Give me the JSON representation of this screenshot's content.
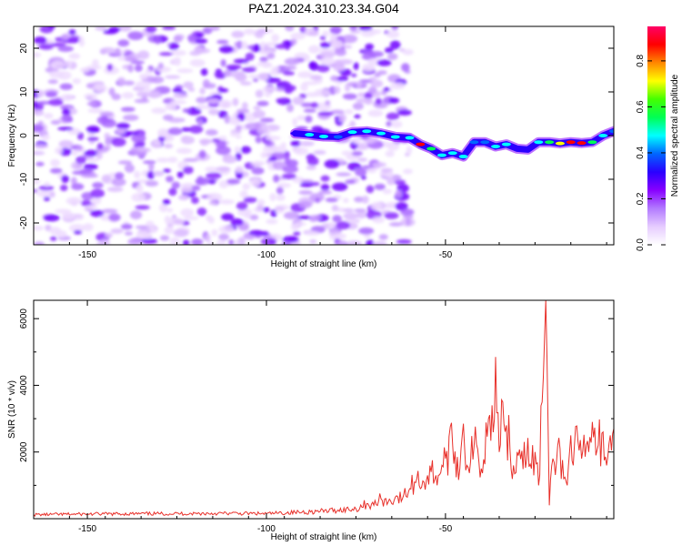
{
  "title": "PAZ1.2024.310.23.34.G04",
  "chart_data": [
    {
      "type": "heatmap",
      "xlabel": "Height of straight line (km)",
      "ylabel": "Frequency (Hz)",
      "xlim": [
        -165,
        -3
      ],
      "ylim": [
        -25,
        25
      ],
      "xticks": [
        -150,
        -100,
        -50
      ],
      "yticks": [
        -20,
        -10,
        0,
        10,
        20
      ],
      "colorbar": {
        "label": "Normalized spectral amplitude",
        "range": [
          0,
          0.95
        ],
        "ticks": [
          0.0,
          0.2,
          0.4,
          0.6,
          0.8
        ],
        "colors": [
          "#ffffff",
          "#e6ccff",
          "#b27aff",
          "#8800ff",
          "#2a00ff",
          "#0066ff",
          "#00ffff",
          "#00ff55",
          "#44ff00",
          "#ffff00",
          "#ff8800",
          "#ff0000",
          "#ff0066"
        ]
      },
      "signal_track": {
        "x": [
          -92,
          -88,
          -84,
          -80,
          -76,
          -72,
          -68,
          -64,
          -60,
          -57,
          -54,
          -51,
          -48,
          -45,
          -42,
          -39,
          -36,
          -33,
          -30,
          -27,
          -24,
          -21,
          -18,
          -15,
          -12,
          -9,
          -6,
          -3
        ],
        "y": [
          0.5,
          0.2,
          -0.2,
          -0.3,
          0.8,
          1.0,
          0.5,
          -0.3,
          -0.5,
          -2.0,
          -3.0,
          -4.5,
          -4.0,
          -4.8,
          -1.5,
          -1.5,
          -2.5,
          -2.0,
          -3.0,
          -3.2,
          -1.5,
          -1.5,
          -1.8,
          -1.5,
          -1.7,
          -1.5,
          0.0,
          1.0
        ],
        "amplitude": [
          0.35,
          0.45,
          0.45,
          0.4,
          0.45,
          0.5,
          0.5,
          0.45,
          0.5,
          0.85,
          0.55,
          0.5,
          0.5,
          0.45,
          0.4,
          0.4,
          0.45,
          0.45,
          0.35,
          0.35,
          0.45,
          0.55,
          0.7,
          0.9,
          0.85,
          0.55,
          0.45,
          0.4
        ]
      }
    },
    {
      "type": "line",
      "xlabel": "Height of straight line (km)",
      "ylabel": "SNR (10 * v/v)",
      "xlim": [
        -165,
        -3
      ],
      "ylim": [
        0,
        6550
      ],
      "xticks": [
        -150,
        -100,
        -50
      ],
      "yticks": [
        2000,
        4000,
        6000
      ],
      "series": [
        {
          "color": "#e8302a",
          "x": [
            -165,
            -150,
            -130,
            -110,
            -100,
            -90,
            -85,
            -80,
            -75,
            -72,
            -70,
            -68,
            -66,
            -64,
            -62,
            -60,
            -58,
            -56,
            -54,
            -52,
            -50,
            -48,
            -46,
            -45,
            -44,
            -42,
            -40,
            -38,
            -37,
            -36,
            -35,
            -34,
            -33,
            -32,
            -31,
            -30,
            -28,
            -26,
            -25,
            -24,
            -23,
            -22,
            -21,
            -20,
            -19,
            -18,
            -17,
            -16,
            -15,
            -14,
            -12,
            -10,
            -9,
            -8,
            -6,
            -5,
            -4,
            -3
          ],
          "y": [
            120,
            140,
            150,
            160,
            150,
            200,
            220,
            260,
            300,
            450,
            400,
            600,
            500,
            650,
            600,
            900,
            1200,
            1100,
            1400,
            1300,
            1800,
            2200,
            1500,
            2850,
            1600,
            2200,
            1500,
            3000,
            3400,
            4850,
            2000,
            3500,
            2800,
            2100,
            1600,
            2000,
            2300,
            1500,
            2000,
            1000,
            3500,
            6550,
            400,
            1800,
            1700,
            2100,
            1200,
            1000,
            2500,
            2200,
            1800,
            2000,
            2900,
            1900,
            2600,
            1600,
            2500,
            2700
          ]
        }
      ]
    }
  ]
}
